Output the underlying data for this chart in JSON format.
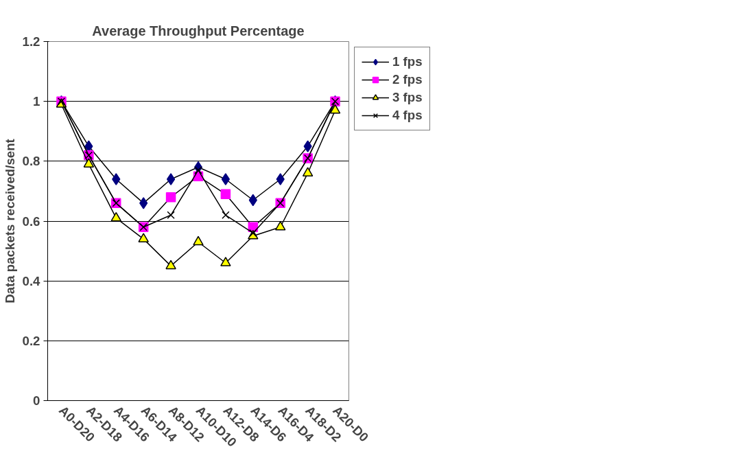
{
  "chart_data": {
    "type": "line",
    "title": "Average Throughput Percentage",
    "ylabel": "Data packets received/sent",
    "categories": [
      "A0-D20",
      "A2-D18",
      "A4-D16",
      "A6-D14",
      "A8-D12",
      "A10-D10",
      "A12-D8",
      "A14-D6",
      "A16-D4",
      "A18-D2",
      "A20-D0"
    ],
    "ylim": [
      0,
      1.2
    ],
    "yticks": [
      0,
      0.2,
      0.4,
      0.6,
      0.8,
      1,
      1.2
    ],
    "grid": "y",
    "legend": "right",
    "series": [
      {
        "name": "1 fps",
        "color": "#000080",
        "marker": "diamond",
        "values": [
          1,
          0.85,
          0.74,
          0.66,
          0.74,
          0.78,
          0.74,
          0.67,
          0.74,
          0.85,
          1
        ]
      },
      {
        "name": "2 fps",
        "color": "#ff00ff",
        "marker": "square",
        "values": [
          1,
          0.82,
          0.66,
          0.58,
          0.68,
          0.75,
          0.69,
          0.58,
          0.66,
          0.81,
          1
        ]
      },
      {
        "name": "3 fps",
        "color": "#ffff00",
        "marker": "triangle",
        "values": [
          0.99,
          0.79,
          0.61,
          0.54,
          0.45,
          0.53,
          0.46,
          0.55,
          0.58,
          0.76,
          0.97
        ]
      },
      {
        "name": "4 fps",
        "color": "#000000",
        "marker": "cross",
        "values": [
          1,
          0.82,
          0.66,
          0.58,
          0.62,
          0.77,
          0.62,
          0.56,
          0.66,
          0.81,
          1
        ]
      }
    ]
  }
}
